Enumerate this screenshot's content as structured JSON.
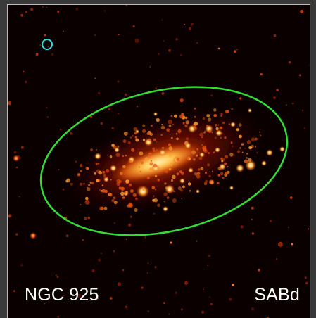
{
  "labels": {
    "galaxy_name": "NGC 925",
    "morph_type": "SABd"
  },
  "colors": {
    "background": "#0a0000",
    "ellipse": "#33dd33",
    "marker": "#33dddd",
    "galaxy_core": "#ffe27a",
    "galaxy_mid": "#ff8a1e",
    "galaxy_outer": "#b82200",
    "text": "#ffffff"
  },
  "icons": {
    "overlay_ellipse": "aperture-ellipse",
    "overlay_marker": "circle-marker"
  }
}
